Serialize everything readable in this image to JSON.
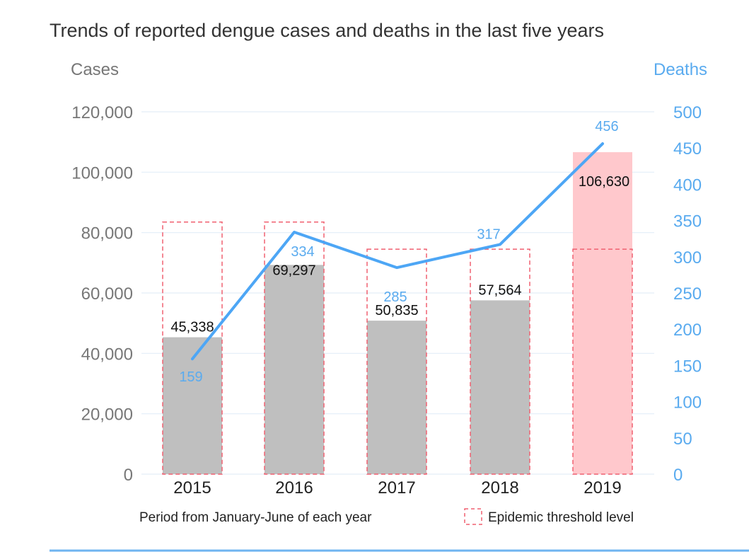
{
  "chart_data": {
    "type": "bar",
    "title": "Trends of reported dengue cases and deaths in the last five years",
    "categories": [
      "2015",
      "2016",
      "2017",
      "2018",
      "2019"
    ],
    "left_axis": {
      "label": "Cases",
      "ylim": [
        0,
        120000
      ],
      "ticks": [
        0,
        20000,
        40000,
        60000,
        80000,
        100000,
        120000
      ],
      "tick_labels": [
        "0",
        "20,000",
        "40,000",
        "60,000",
        "80,000",
        "100,000",
        "120,000"
      ]
    },
    "right_axis": {
      "label": "Deaths",
      "ylim": [
        0,
        500
      ],
      "ticks": [
        0,
        50,
        100,
        150,
        200,
        250,
        300,
        350,
        400,
        450,
        500
      ],
      "tick_labels": [
        "0",
        "50",
        "100",
        "150",
        "200",
        "250",
        "300",
        "350",
        "400",
        "450",
        "500"
      ]
    },
    "series": [
      {
        "name": "Cases",
        "type": "bar",
        "axis": "left",
        "values": [
          45338,
          69297,
          50835,
          57564,
          106630
        ],
        "labels": [
          "45,338",
          "69,297",
          "50,835",
          "57,564",
          "106,630"
        ]
      },
      {
        "name": "Epidemic threshold level",
        "type": "bar-outline",
        "axis": "left",
        "values": [
          83500,
          83500,
          74500,
          74500,
          74500
        ]
      },
      {
        "name": "Deaths",
        "type": "line",
        "axis": "right",
        "values": [
          159,
          334,
          285,
          317,
          456
        ],
        "labels": [
          "159",
          "334",
          "285",
          "317",
          "456"
        ]
      }
    ],
    "footnote": "Period from January-June of each year",
    "legend": {
      "position": "bottom-right",
      "threshold_label": "Epidemic threshold level"
    },
    "grid": true
  },
  "colors": {
    "bar": "#bfbfbf",
    "bar_highlight": "#ffc8cc",
    "threshold": "#f06070",
    "line": "#4da6f5",
    "deaths_text": "#5aabef",
    "grid": "#e3eef8",
    "bottom_rule": "#6fb4f0"
  }
}
